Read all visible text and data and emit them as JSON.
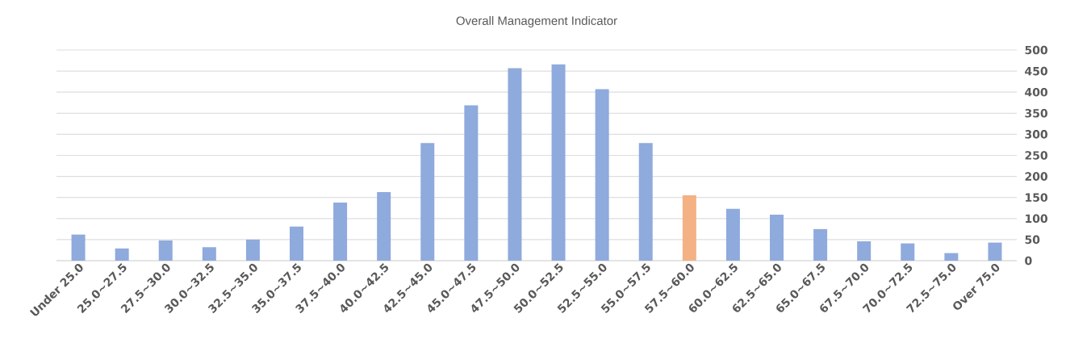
{
  "chart_data": {
    "type": "bar",
    "title": "Overall Management Indicator",
    "categories": [
      "Under 25.0",
      "25.0~27.5",
      "27.5~30.0",
      "30.0~32.5",
      "32.5~35.0",
      "35.0~37.5",
      "37.5~40.0",
      "40.0~42.5",
      "42.5~45.0",
      "45.0~47.5",
      "47.5~50.0",
      "50.0~52.5",
      "52.5~55.0",
      "55.0~57.5",
      "57.5~60.0",
      "60.0~62.5",
      "62.5~65.0",
      "65.0~67.5",
      "67.5~70.0",
      "70.0~72.5",
      "72.5~75.0",
      "Over 75.0"
    ],
    "values": [
      62,
      29,
      48,
      32,
      50,
      81,
      138,
      163,
      279,
      369,
      457,
      466,
      407,
      279,
      155,
      123,
      109,
      75,
      46,
      41,
      18,
      43
    ],
    "colors": [
      "#8faadc",
      "#8faadc",
      "#8faadc",
      "#8faadc",
      "#8faadc",
      "#8faadc",
      "#8faadc",
      "#8faadc",
      "#8faadc",
      "#8faadc",
      "#8faadc",
      "#8faadc",
      "#8faadc",
      "#8faadc",
      "#f4b183",
      "#8faadc",
      "#8faadc",
      "#8faadc",
      "#8faadc",
      "#8faadc",
      "#8faadc",
      "#8faadc"
    ],
    "ylim": [
      0,
      500
    ],
    "yticks": [
      0,
      50,
      100,
      150,
      200,
      250,
      300,
      350,
      400,
      450,
      500
    ],
    "grid": "y"
  }
}
